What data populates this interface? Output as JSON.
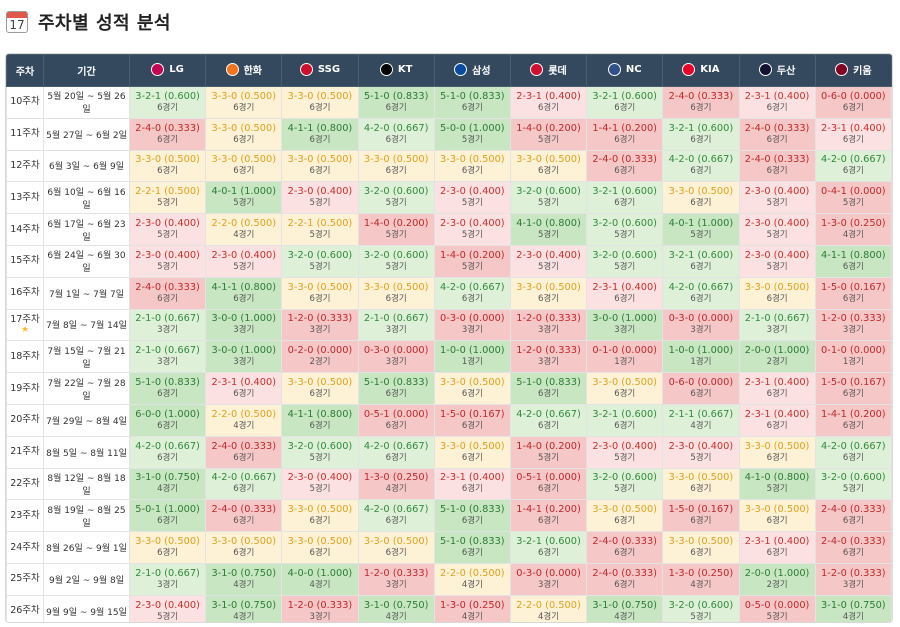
{
  "header": {
    "title": "주차별 성적 분석",
    "icon": "calendar-icon",
    "icon_number": "17"
  },
  "columns": {
    "week": "주차",
    "period": "기간"
  },
  "teams": [
    {
      "name": "LG",
      "color": "#c30452"
    },
    {
      "name": "한화",
      "color": "#f37321"
    },
    {
      "name": "SSG",
      "color": "#ce0e2d"
    },
    {
      "name": "KT",
      "color": "#000000"
    },
    {
      "name": "삼성",
      "color": "#074ca1"
    },
    {
      "name": "롯데",
      "color": "#d00f31"
    },
    {
      "name": "NC",
      "color": "#315288"
    },
    {
      "name": "KIA",
      "color": "#ea0029"
    },
    {
      "name": "두산",
      "color": "#131230"
    },
    {
      "name": "키움",
      "color": "#820024"
    }
  ],
  "rows": [
    {
      "week": "10주차",
      "period": "5월 20일 ~ 5월 26일",
      "star": false,
      "cells": [
        {
          "rec": "3-2-1 (0.600)",
          "games": "6경기",
          "t": "g"
        },
        {
          "rec": "3-3-0 (0.500)",
          "games": "6경기",
          "t": "y"
        },
        {
          "rec": "3-3-0 (0.500)",
          "games": "6경기",
          "t": "y"
        },
        {
          "rec": "5-1-0 (0.833)",
          "games": "6경기",
          "t": "G"
        },
        {
          "rec": "5-1-0 (0.833)",
          "games": "6경기",
          "t": "G"
        },
        {
          "rec": "2-3-1 (0.400)",
          "games": "6경기",
          "t": "r"
        },
        {
          "rec": "3-2-1 (0.600)",
          "games": "6경기",
          "t": "g"
        },
        {
          "rec": "2-4-0 (0.333)",
          "games": "6경기",
          "t": "R"
        },
        {
          "rec": "2-3-1 (0.400)",
          "games": "6경기",
          "t": "r"
        },
        {
          "rec": "0-6-0 (0.000)",
          "games": "6경기",
          "t": "R"
        }
      ]
    },
    {
      "week": "11주차",
      "period": "5월 27일 ~ 6월 2일",
      "star": false,
      "cells": [
        {
          "rec": "2-4-0 (0.333)",
          "games": "6경기",
          "t": "R"
        },
        {
          "rec": "3-3-0 (0.500)",
          "games": "6경기",
          "t": "y"
        },
        {
          "rec": "4-1-1 (0.800)",
          "games": "6경기",
          "t": "G"
        },
        {
          "rec": "4-2-0 (0.667)",
          "games": "6경기",
          "t": "g"
        },
        {
          "rec": "5-0-0 (1.000)",
          "games": "5경기",
          "t": "G"
        },
        {
          "rec": "1-4-0 (0.200)",
          "games": "5경기",
          "t": "R"
        },
        {
          "rec": "1-4-1 (0.200)",
          "games": "6경기",
          "t": "R"
        },
        {
          "rec": "3-2-1 (0.600)",
          "games": "6경기",
          "t": "g"
        },
        {
          "rec": "2-4-0 (0.333)",
          "games": "6경기",
          "t": "R"
        },
        {
          "rec": "2-3-1 (0.400)",
          "games": "6경기",
          "t": "r"
        }
      ]
    },
    {
      "week": "12주차",
      "period": "6월 3일 ~ 6월 9일",
      "star": false,
      "cells": [
        {
          "rec": "3-3-0 (0.500)",
          "games": "6경기",
          "t": "y"
        },
        {
          "rec": "3-3-0 (0.500)",
          "games": "6경기",
          "t": "y"
        },
        {
          "rec": "3-3-0 (0.500)",
          "games": "6경기",
          "t": "y"
        },
        {
          "rec": "3-3-0 (0.500)",
          "games": "6경기",
          "t": "y"
        },
        {
          "rec": "3-3-0 (0.500)",
          "games": "6경기",
          "t": "y"
        },
        {
          "rec": "3-3-0 (0.500)",
          "games": "6경기",
          "t": "y"
        },
        {
          "rec": "2-4-0 (0.333)",
          "games": "6경기",
          "t": "R"
        },
        {
          "rec": "4-2-0 (0.667)",
          "games": "6경기",
          "t": "g"
        },
        {
          "rec": "2-4-0 (0.333)",
          "games": "6경기",
          "t": "R"
        },
        {
          "rec": "4-2-0 (0.667)",
          "games": "6경기",
          "t": "g"
        }
      ]
    },
    {
      "week": "13주차",
      "period": "6월 10일 ~ 6월 16일",
      "star": false,
      "cells": [
        {
          "rec": "2-2-1 (0.500)",
          "games": "5경기",
          "t": "y"
        },
        {
          "rec": "4-0-1 (1.000)",
          "games": "5경기",
          "t": "G"
        },
        {
          "rec": "2-3-0 (0.400)",
          "games": "5경기",
          "t": "r"
        },
        {
          "rec": "3-2-0 (0.600)",
          "games": "5경기",
          "t": "g"
        },
        {
          "rec": "2-3-0 (0.400)",
          "games": "5경기",
          "t": "r"
        },
        {
          "rec": "3-2-0 (0.600)",
          "games": "5경기",
          "t": "g"
        },
        {
          "rec": "3-2-1 (0.600)",
          "games": "6경기",
          "t": "g"
        },
        {
          "rec": "3-3-0 (0.500)",
          "games": "6경기",
          "t": "y"
        },
        {
          "rec": "2-3-0 (0.400)",
          "games": "5경기",
          "t": "r"
        },
        {
          "rec": "0-4-1 (0.000)",
          "games": "5경기",
          "t": "R"
        }
      ]
    },
    {
      "week": "14주차",
      "period": "6월 17일 ~ 6월 23일",
      "star": false,
      "cells": [
        {
          "rec": "2-3-0 (0.400)",
          "games": "5경기",
          "t": "r"
        },
        {
          "rec": "2-2-0 (0.500)",
          "games": "4경기",
          "t": "y"
        },
        {
          "rec": "2-2-1 (0.500)",
          "games": "5경기",
          "t": "y"
        },
        {
          "rec": "1-4-0 (0.200)",
          "games": "5경기",
          "t": "R"
        },
        {
          "rec": "2-3-0 (0.400)",
          "games": "5경기",
          "t": "r"
        },
        {
          "rec": "4-1-0 (0.800)",
          "games": "5경기",
          "t": "G"
        },
        {
          "rec": "3-2-0 (0.600)",
          "games": "5경기",
          "t": "g"
        },
        {
          "rec": "4-0-1 (1.000)",
          "games": "5경기",
          "t": "G"
        },
        {
          "rec": "2-3-0 (0.400)",
          "games": "5경기",
          "t": "r"
        },
        {
          "rec": "1-3-0 (0.250)",
          "games": "4경기",
          "t": "R"
        }
      ]
    },
    {
      "week": "15주차",
      "period": "6월 24일 ~ 6월 30일",
      "star": false,
      "cells": [
        {
          "rec": "2-3-0 (0.400)",
          "games": "5경기",
          "t": "r"
        },
        {
          "rec": "2-3-0 (0.400)",
          "games": "5경기",
          "t": "r"
        },
        {
          "rec": "3-2-0 (0.600)",
          "games": "5경기",
          "t": "g"
        },
        {
          "rec": "3-2-0 (0.600)",
          "games": "5경기",
          "t": "g"
        },
        {
          "rec": "1-4-0 (0.200)",
          "games": "5경기",
          "t": "R"
        },
        {
          "rec": "2-3-0 (0.400)",
          "games": "5경기",
          "t": "r"
        },
        {
          "rec": "3-2-0 (0.600)",
          "games": "5경기",
          "t": "g"
        },
        {
          "rec": "3-2-1 (0.600)",
          "games": "6경기",
          "t": "g"
        },
        {
          "rec": "2-3-0 (0.400)",
          "games": "5경기",
          "t": "r"
        },
        {
          "rec": "4-1-1 (0.800)",
          "games": "6경기",
          "t": "G"
        }
      ]
    },
    {
      "week": "16주차",
      "period": "7월 1일 ~ 7월 7일",
      "star": false,
      "cells": [
        {
          "rec": "2-4-0 (0.333)",
          "games": "6경기",
          "t": "R"
        },
        {
          "rec": "4-1-1 (0.800)",
          "games": "6경기",
          "t": "G"
        },
        {
          "rec": "3-3-0 (0.500)",
          "games": "6경기",
          "t": "y"
        },
        {
          "rec": "3-3-0 (0.500)",
          "games": "6경기",
          "t": "y"
        },
        {
          "rec": "4-2-0 (0.667)",
          "games": "6경기",
          "t": "g"
        },
        {
          "rec": "3-3-0 (0.500)",
          "games": "6경기",
          "t": "y"
        },
        {
          "rec": "2-3-1 (0.400)",
          "games": "6경기",
          "t": "r"
        },
        {
          "rec": "4-2-0 (0.667)",
          "games": "6경기",
          "t": "g"
        },
        {
          "rec": "3-3-0 (0.500)",
          "games": "6경기",
          "t": "y"
        },
        {
          "rec": "1-5-0 (0.167)",
          "games": "6경기",
          "t": "R"
        }
      ]
    },
    {
      "week": "17주차",
      "period": "7월 8일 ~ 7월 14일",
      "star": true,
      "cells": [
        {
          "rec": "2-1-0 (0.667)",
          "games": "3경기",
          "t": "g"
        },
        {
          "rec": "3-0-0 (1.000)",
          "games": "3경기",
          "t": "G"
        },
        {
          "rec": "1-2-0 (0.333)",
          "games": "3경기",
          "t": "R"
        },
        {
          "rec": "2-1-0 (0.667)",
          "games": "3경기",
          "t": "g"
        },
        {
          "rec": "0-3-0 (0.000)",
          "games": "3경기",
          "t": "R"
        },
        {
          "rec": "1-2-0 (0.333)",
          "games": "3경기",
          "t": "R"
        },
        {
          "rec": "3-0-0 (1.000)",
          "games": "3경기",
          "t": "G"
        },
        {
          "rec": "0-3-0 (0.000)",
          "games": "3경기",
          "t": "R"
        },
        {
          "rec": "2-1-0 (0.667)",
          "games": "3경기",
          "t": "g"
        },
        {
          "rec": "1-2-0 (0.333)",
          "games": "3경기",
          "t": "R"
        }
      ]
    },
    {
      "week": "18주차",
      "period": "7월 15일 ~ 7월 21일",
      "star": false,
      "cells": [
        {
          "rec": "2-1-0 (0.667)",
          "games": "3경기",
          "t": "g"
        },
        {
          "rec": "3-0-0 (1.000)",
          "games": "3경기",
          "t": "G"
        },
        {
          "rec": "0-2-0 (0.000)",
          "games": "2경기",
          "t": "R"
        },
        {
          "rec": "0-3-0 (0.000)",
          "games": "3경기",
          "t": "R"
        },
        {
          "rec": "1-0-0 (1.000)",
          "games": "1경기",
          "t": "G"
        },
        {
          "rec": "1-2-0 (0.333)",
          "games": "3경기",
          "t": "R"
        },
        {
          "rec": "0-1-0 (0.000)",
          "games": "1경기",
          "t": "R"
        },
        {
          "rec": "1-0-0 (1.000)",
          "games": "1경기",
          "t": "G"
        },
        {
          "rec": "2-0-0 (1.000)",
          "games": "2경기",
          "t": "G"
        },
        {
          "rec": "0-1-0 (0.000)",
          "games": "1경기",
          "t": "R"
        }
      ]
    },
    {
      "week": "19주차",
      "period": "7월 22일 ~ 7월 28일",
      "star": false,
      "cells": [
        {
          "rec": "5-1-0 (0.833)",
          "games": "6경기",
          "t": "G"
        },
        {
          "rec": "2-3-1 (0.400)",
          "games": "6경기",
          "t": "r"
        },
        {
          "rec": "3-3-0 (0.500)",
          "games": "6경기",
          "t": "y"
        },
        {
          "rec": "5-1-0 (0.833)",
          "games": "6경기",
          "t": "G"
        },
        {
          "rec": "3-3-0 (0.500)",
          "games": "6경기",
          "t": "y"
        },
        {
          "rec": "5-1-0 (0.833)",
          "games": "6경기",
          "t": "G"
        },
        {
          "rec": "3-3-0 (0.500)",
          "games": "6경기",
          "t": "y"
        },
        {
          "rec": "0-6-0 (0.000)",
          "games": "6경기",
          "t": "R"
        },
        {
          "rec": "2-3-1 (0.400)",
          "games": "6경기",
          "t": "r"
        },
        {
          "rec": "1-5-0 (0.167)",
          "games": "6경기",
          "t": "R"
        }
      ]
    },
    {
      "week": "20주차",
      "period": "7월 29일 ~ 8월 4일",
      "star": false,
      "cells": [
        {
          "rec": "6-0-0 (1.000)",
          "games": "6경기",
          "t": "G"
        },
        {
          "rec": "2-2-0 (0.500)",
          "games": "4경기",
          "t": "y"
        },
        {
          "rec": "4-1-1 (0.800)",
          "games": "6경기",
          "t": "G"
        },
        {
          "rec": "0-5-1 (0.000)",
          "games": "6경기",
          "t": "R"
        },
        {
          "rec": "1-5-0 (0.167)",
          "games": "6경기",
          "t": "R"
        },
        {
          "rec": "4-2-0 (0.667)",
          "games": "6경기",
          "t": "g"
        },
        {
          "rec": "3-2-1 (0.600)",
          "games": "6경기",
          "t": "g"
        },
        {
          "rec": "2-1-1 (0.667)",
          "games": "4경기",
          "t": "g"
        },
        {
          "rec": "2-3-1 (0.400)",
          "games": "6경기",
          "t": "r"
        },
        {
          "rec": "1-4-1 (0.200)",
          "games": "6경기",
          "t": "R"
        }
      ]
    },
    {
      "week": "21주차",
      "period": "8월 5일 ~ 8월 11일",
      "star": false,
      "cells": [
        {
          "rec": "4-2-0 (0.667)",
          "games": "6경기",
          "t": "g"
        },
        {
          "rec": "2-4-0 (0.333)",
          "games": "6경기",
          "t": "R"
        },
        {
          "rec": "3-2-0 (0.600)",
          "games": "5경기",
          "t": "g"
        },
        {
          "rec": "4-2-0 (0.667)",
          "games": "6경기",
          "t": "g"
        },
        {
          "rec": "3-3-0 (0.500)",
          "games": "6경기",
          "t": "y"
        },
        {
          "rec": "1-4-0 (0.200)",
          "games": "5경기",
          "t": "R"
        },
        {
          "rec": "2-3-0 (0.400)",
          "games": "5경기",
          "t": "r"
        },
        {
          "rec": "2-3-0 (0.400)",
          "games": "5경기",
          "t": "r"
        },
        {
          "rec": "3-3-0 (0.500)",
          "games": "6경기",
          "t": "y"
        },
        {
          "rec": "4-2-0 (0.667)",
          "games": "6경기",
          "t": "g"
        }
      ]
    },
    {
      "week": "22주차",
      "period": "8월 12일 ~ 8월 18일",
      "star": false,
      "cells": [
        {
          "rec": "3-1-0 (0.750)",
          "games": "4경기",
          "t": "G"
        },
        {
          "rec": "4-2-0 (0.667)",
          "games": "6경기",
          "t": "g"
        },
        {
          "rec": "2-3-0 (0.400)",
          "games": "5경기",
          "t": "r"
        },
        {
          "rec": "1-3-0 (0.250)",
          "games": "4경기",
          "t": "R"
        },
        {
          "rec": "2-3-1 (0.400)",
          "games": "6경기",
          "t": "r"
        },
        {
          "rec": "0-5-1 (0.000)",
          "games": "6경기",
          "t": "R"
        },
        {
          "rec": "3-2-0 (0.600)",
          "games": "5경기",
          "t": "g"
        },
        {
          "rec": "3-3-0 (0.500)",
          "games": "6경기",
          "t": "y"
        },
        {
          "rec": "4-1-0 (0.800)",
          "games": "5경기",
          "t": "G"
        },
        {
          "rec": "3-2-0 (0.600)",
          "games": "5경기",
          "t": "g"
        }
      ]
    },
    {
      "week": "23주차",
      "period": "8월 19일 ~ 8월 25일",
      "star": false,
      "cells": [
        {
          "rec": "5-0-1 (1.000)",
          "games": "6경기",
          "t": "G"
        },
        {
          "rec": "2-4-0 (0.333)",
          "games": "6경기",
          "t": "R"
        },
        {
          "rec": "3-3-0 (0.500)",
          "games": "6경기",
          "t": "y"
        },
        {
          "rec": "4-2-0 (0.667)",
          "games": "6경기",
          "t": "g"
        },
        {
          "rec": "5-1-0 (0.833)",
          "games": "6경기",
          "t": "G"
        },
        {
          "rec": "1-4-1 (0.200)",
          "games": "6경기",
          "t": "R"
        },
        {
          "rec": "3-3-0 (0.500)",
          "games": "6경기",
          "t": "y"
        },
        {
          "rec": "1-5-0 (0.167)",
          "games": "6경기",
          "t": "R"
        },
        {
          "rec": "3-3-0 (0.500)",
          "games": "6경기",
          "t": "y"
        },
        {
          "rec": "2-4-0 (0.333)",
          "games": "6경기",
          "t": "R"
        }
      ]
    },
    {
      "week": "24주차",
      "period": "8월 26일 ~ 9월 1일",
      "star": false,
      "cells": [
        {
          "rec": "3-3-0 (0.500)",
          "games": "6경기",
          "t": "y"
        },
        {
          "rec": "3-3-0 (0.500)",
          "games": "6경기",
          "t": "y"
        },
        {
          "rec": "3-3-0 (0.500)",
          "games": "6경기",
          "t": "y"
        },
        {
          "rec": "3-3-0 (0.500)",
          "games": "6경기",
          "t": "y"
        },
        {
          "rec": "5-1-0 (0.833)",
          "games": "6경기",
          "t": "G"
        },
        {
          "rec": "3-2-1 (0.600)",
          "games": "6경기",
          "t": "g"
        },
        {
          "rec": "2-4-0 (0.333)",
          "games": "6경기",
          "t": "R"
        },
        {
          "rec": "3-3-0 (0.500)",
          "games": "6경기",
          "t": "y"
        },
        {
          "rec": "2-3-1 (0.400)",
          "games": "6경기",
          "t": "r"
        },
        {
          "rec": "2-4-0 (0.333)",
          "games": "6경기",
          "t": "R"
        }
      ]
    },
    {
      "week": "25주차",
      "period": "9월 2일 ~ 9월 8일",
      "star": false,
      "cells": [
        {
          "rec": "2-1-0 (0.667)",
          "games": "3경기",
          "t": "g"
        },
        {
          "rec": "3-1-0 (0.750)",
          "games": "4경기",
          "t": "G"
        },
        {
          "rec": "4-0-0 (1.000)",
          "games": "4경기",
          "t": "G"
        },
        {
          "rec": "1-2-0 (0.333)",
          "games": "3경기",
          "t": "R"
        },
        {
          "rec": "2-2-0 (0.500)",
          "games": "4경기",
          "t": "y"
        },
        {
          "rec": "0-3-0 (0.000)",
          "games": "3경기",
          "t": "R"
        },
        {
          "rec": "2-4-0 (0.333)",
          "games": "6경기",
          "t": "R"
        },
        {
          "rec": "1-3-0 (0.250)",
          "games": "4경기",
          "t": "R"
        },
        {
          "rec": "2-0-0 (1.000)",
          "games": "2경기",
          "t": "G"
        },
        {
          "rec": "1-2-0 (0.333)",
          "games": "3경기",
          "t": "R"
        }
      ]
    },
    {
      "week": "26주차",
      "period": "9월 9일 ~ 9월 15일",
      "star": false,
      "cells": [
        {
          "rec": "2-3-0 (0.400)",
          "games": "5경기",
          "t": "r"
        },
        {
          "rec": "3-1-0 (0.750)",
          "games": "4경기",
          "t": "G"
        },
        {
          "rec": "1-2-0 (0.333)",
          "games": "3경기",
          "t": "R"
        },
        {
          "rec": "3-1-0 (0.750)",
          "games": "4경기",
          "t": "G"
        },
        {
          "rec": "1-3-0 (0.250)",
          "games": "4경기",
          "t": "R"
        },
        {
          "rec": "2-2-0 (0.500)",
          "games": "4경기",
          "t": "y"
        },
        {
          "rec": "3-1-0 (0.750)",
          "games": "4경기",
          "t": "G"
        },
        {
          "rec": "3-2-0 (0.600)",
          "games": "5경기",
          "t": "g"
        },
        {
          "rec": "0-5-0 (0.000)",
          "games": "5경기",
          "t": "R"
        },
        {
          "rec": "3-1-0 (0.750)",
          "games": "4경기",
          "t": "G"
        }
      ]
    }
  ]
}
